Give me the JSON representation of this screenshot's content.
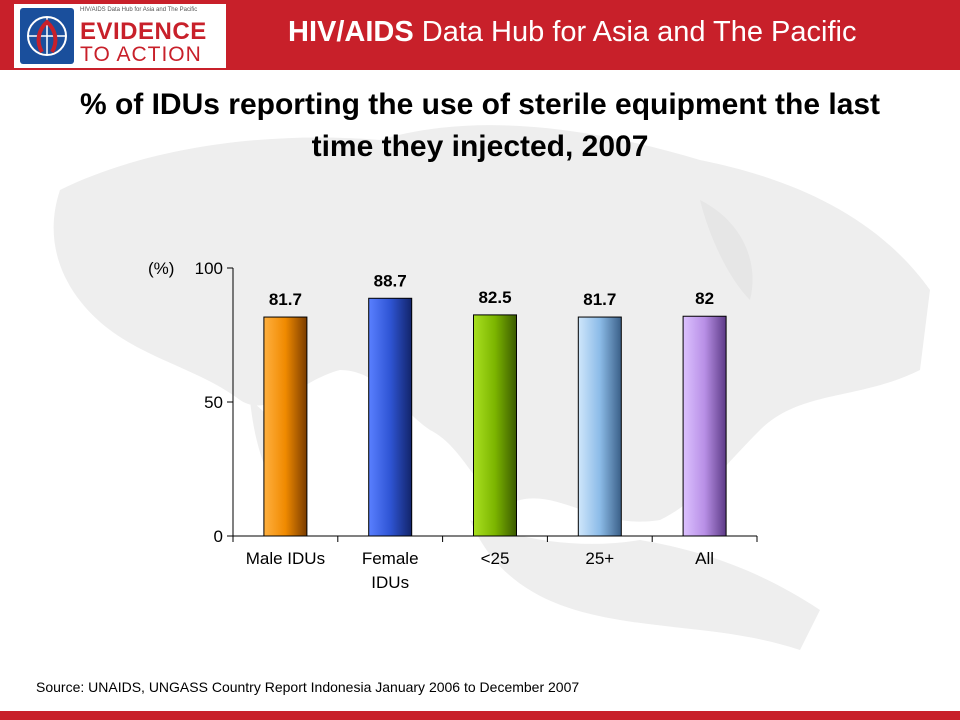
{
  "header": {
    "logo_small_text": "HIV/AIDS Data Hub for Asia and The Pacific",
    "logo_line1": "EVIDENCE",
    "logo_line2": "TO ACTION",
    "hub_title_bold": "HIV/AIDS",
    "hub_title_rest": " Data Hub for Asia and The Pacific"
  },
  "colors": {
    "brand_red": "#c8202a",
    "bar_male": "#f08a00",
    "bar_female": "#2f55d4",
    "bar_under25": "#7cb500",
    "bar_25plus": "#8cbce8",
    "bar_all": "#b88fe6"
  },
  "chart_data": {
    "type": "bar",
    "title": "% of IDUs reporting the use of sterile equipment the last time they injected, 2007",
    "ylabel": "(%)",
    "ylim": [
      0,
      100
    ],
    "yticks": [
      0,
      50,
      100
    ],
    "categories": [
      "Male IDUs",
      "Female IDUs",
      "<25",
      "25+",
      "All"
    ],
    "values": [
      81.7,
      88.7,
      82.5,
      81.7,
      82
    ],
    "data_labels": [
      "81.7",
      "88.7",
      "82.5",
      "81.7",
      "82"
    ],
    "grid": false
  },
  "source": "Source: UNAIDS, UNGASS Country Report Indonesia January 2006 to December 2007"
}
